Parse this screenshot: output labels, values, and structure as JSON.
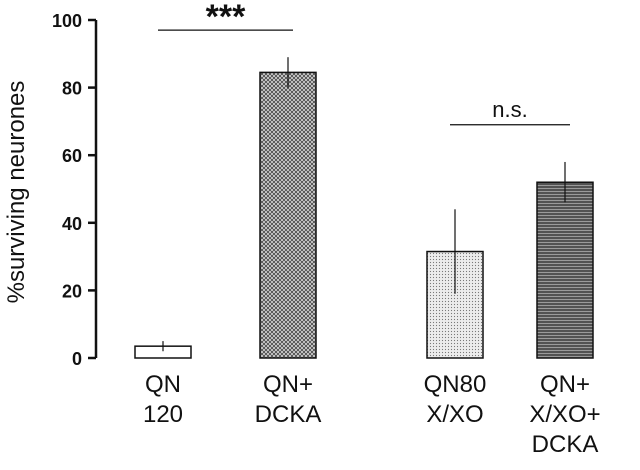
{
  "chart_data": {
    "type": "bar",
    "ylabel": "%surviving neurones",
    "ylim": [
      0,
      100
    ],
    "yticks": [
      "0",
      "20",
      "40",
      "60",
      "80",
      "100"
    ],
    "grid": false,
    "categories": [
      {
        "line1": "QN",
        "line2": "120",
        "line3": ""
      },
      {
        "line1": "QN+",
        "line2": "DCKA",
        "line3": ""
      },
      {
        "line1": "QN80",
        "line2": "X/XO",
        "line3": ""
      },
      {
        "line1": "QN+",
        "line2": "X/XO+",
        "line3": "DCKA"
      }
    ],
    "values": [
      3.5,
      84.5,
      31.5,
      52
    ],
    "errors": [
      1.5,
      4.5,
      12.5,
      6
    ],
    "patterns": [
      "white",
      "crosshatch",
      "light-stipple",
      "horizontal-lines"
    ],
    "annotations": [
      {
        "text": "***",
        "from_category": 0,
        "to_category": 1,
        "y": 97
      },
      {
        "text": "n.s.",
        "from_category": 2,
        "to_category": 3,
        "y": 69
      }
    ]
  }
}
